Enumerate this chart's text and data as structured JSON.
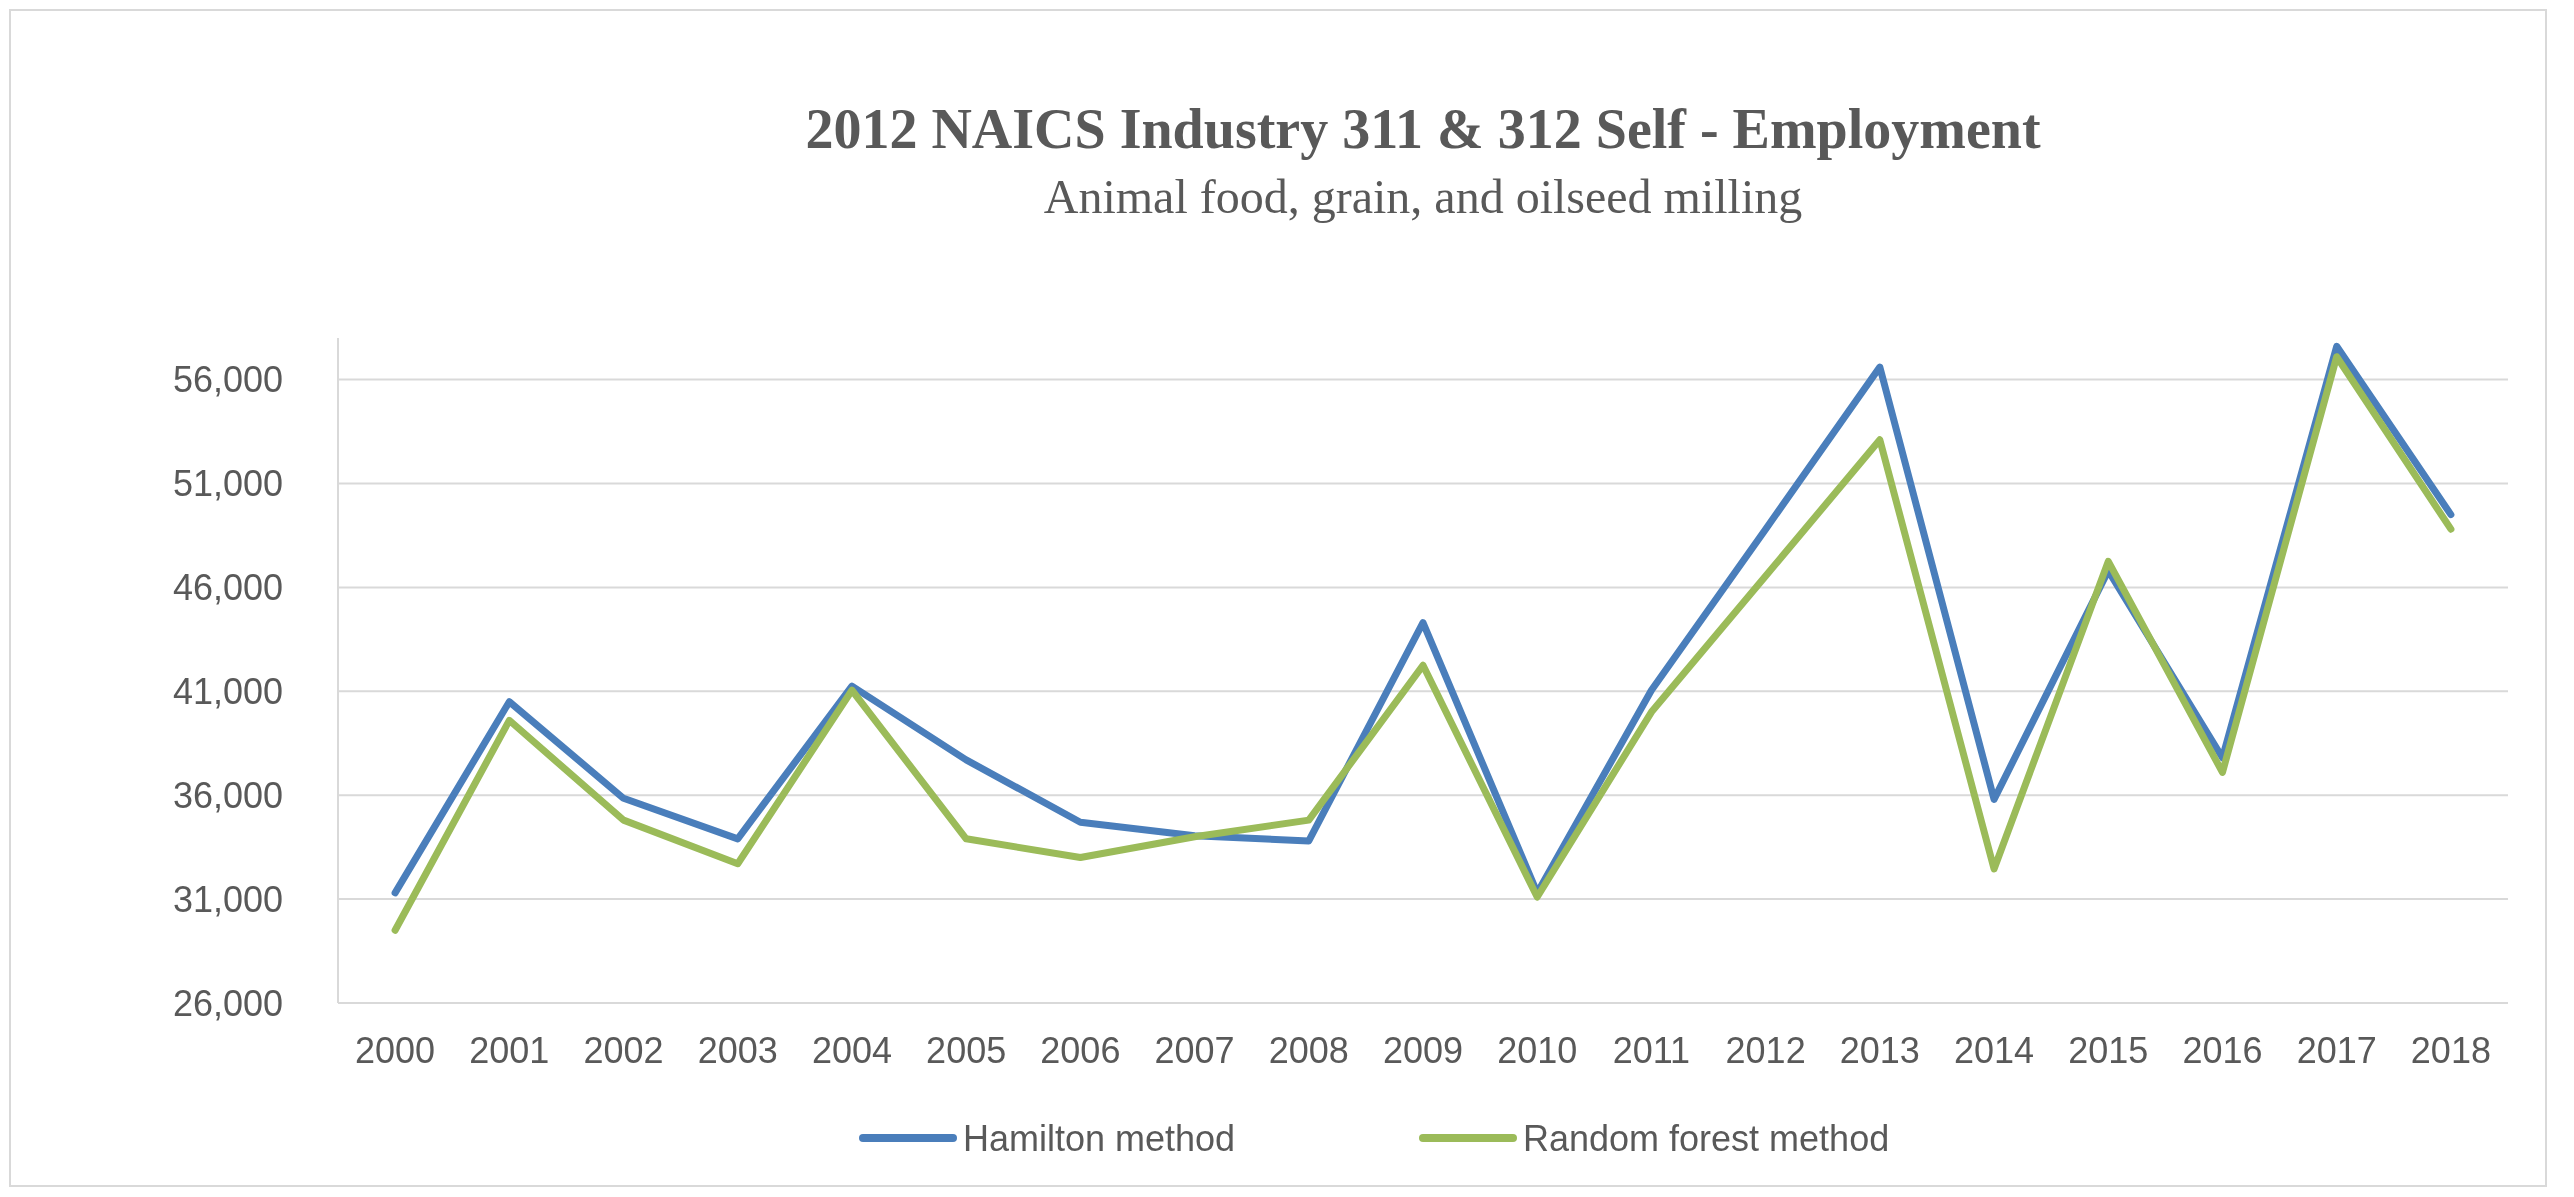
{
  "chart_data": {
    "type": "line",
    "title": "2012 NAICS Industry 311 & 312 Self - Employment",
    "subtitle": "Animal food, grain, and oilseed milling",
    "categories": [
      "2000",
      "2001",
      "2002",
      "2003",
      "2004",
      "2005",
      "2006",
      "2007",
      "2008",
      "2009",
      "2010",
      "2011",
      "2012",
      "2013",
      "2014",
      "2015",
      "2016",
      "2017",
      "2018"
    ],
    "series": [
      {
        "name": "Hamilton method",
        "color": "#4a7ebb",
        "values": [
          31300,
          40500,
          35850,
          33900,
          41250,
          37700,
          34700,
          34050,
          33800,
          44300,
          31300,
          41050,
          48800,
          56600,
          35800,
          46800,
          37800,
          57600,
          49500
        ]
      },
      {
        "name": "Random forest method",
        "color": "#9bbb59",
        "values": [
          29500,
          39600,
          34800,
          32700,
          41050,
          33900,
          33000,
          34000,
          34800,
          42250,
          31100,
          40000,
          46550,
          53100,
          32450,
          47250,
          37100,
          57100,
          48800
        ]
      }
    ],
    "ylim": [
      26000,
      58000
    ],
    "yticks": [
      {
        "value": 26000,
        "label": "26,000"
      },
      {
        "value": 31000,
        "label": "31,000"
      },
      {
        "value": 36000,
        "label": "36,000"
      },
      {
        "value": 41000,
        "label": "41,000"
      },
      {
        "value": 46000,
        "label": "46,000"
      },
      {
        "value": 51000,
        "label": "51,000"
      },
      {
        "value": 56000,
        "label": "56,000"
      }
    ],
    "grid": "y",
    "legend": "bottom",
    "marker": "none",
    "line_style": "solid"
  }
}
